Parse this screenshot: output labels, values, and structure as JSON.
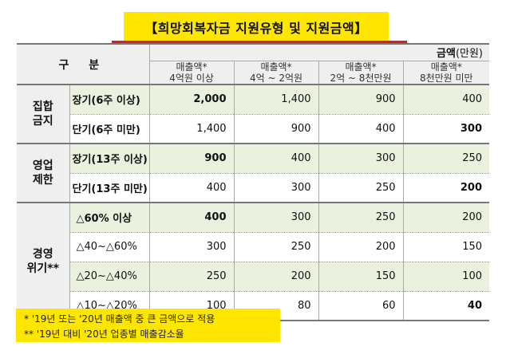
{
  "title": "【희망회복자금 지원유형 및 지원금액】",
  "header": {
    "gubun": "구 분",
    "amount_bold": "금액",
    "amount_unit": "(만원)",
    "columns": [
      {
        "line1": "매출액*",
        "line2": "4억원 이상"
      },
      {
        "line1": "매출액*",
        "line2": "4억 ~ 2억원"
      },
      {
        "line1": "매출액*",
        "line2": "2억 ~ 8천만원"
      },
      {
        "line1": "매출액*",
        "line2": "8천만원 미만"
      }
    ]
  },
  "groups": [
    {
      "name_line1": "집합",
      "name_line2": "금지",
      "rows": [
        {
          "label": "장기(6주 이상)",
          "values": [
            "2,000",
            "1,400",
            "900",
            "400"
          ]
        },
        {
          "label": "단기(6주 미만)",
          "values": [
            "1,400",
            "900",
            "400",
            "300"
          ]
        }
      ]
    },
    {
      "name_line1": "영업",
      "name_line2": "제한",
      "rows": [
        {
          "label": "장기(13주 이상)",
          "values": [
            "900",
            "400",
            "300",
            "250"
          ]
        },
        {
          "label": "단기(13주 미만)",
          "values": [
            "400",
            "300",
            "250",
            "200"
          ]
        }
      ]
    },
    {
      "name_line1": "경영",
      "name_line2": "위기**",
      "rows": [
        {
          "label": "△60% 이상",
          "values": [
            "400",
            "300",
            "250",
            "200"
          ]
        },
        {
          "label": "△40~△60%",
          "values": [
            "300",
            "250",
            "200",
            "150"
          ]
        },
        {
          "label": "△20~△40%",
          "values": [
            "250",
            "200",
            "150",
            "100"
          ]
        },
        {
          "label": "△10~△20%",
          "values": [
            "100",
            "80",
            "60",
            "40"
          ]
        }
      ]
    }
  ],
  "notes": [
    " * '19년 또는 '20년 매출액 중 큰 금액으로 적용",
    "** '19년 대비 '20년 업종별 매출감소율"
  ],
  "colors": {
    "highlight": "#ffe600",
    "underline": "#d9201c",
    "row_green": "#ebf1df",
    "header_gray": "#efefef"
  }
}
